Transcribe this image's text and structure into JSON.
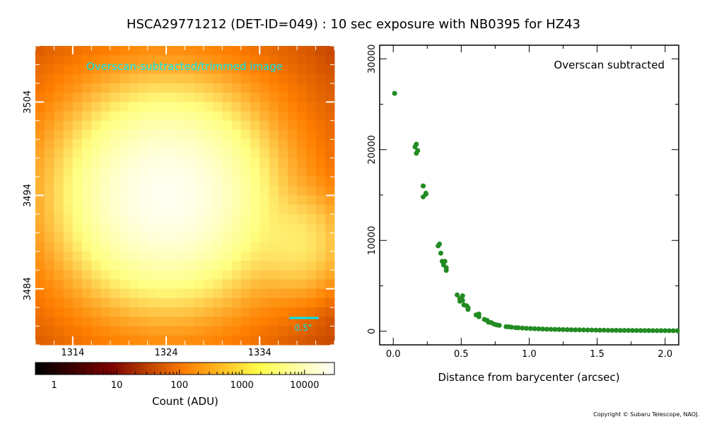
{
  "title": "HSCA29771212 (DET-ID=049) :  10 sec exposure with NB0395 for HZ43",
  "copyright": "Copyright © Subaru Telescope, NAOJ.",
  "colors": {
    "image_cmap": "afmhot",
    "scatter_point": "#228b22",
    "overlay_text": "#00e5ee"
  },
  "chart_data": [
    {
      "type": "heatmap",
      "overlay_label": "Overscan-subtracted/trimmed image",
      "scale_bar_label": "0.5\"",
      "x_ticks": [
        1314,
        1324,
        1334
      ],
      "y_ticks": [
        3504,
        3494,
        3484
      ],
      "xlim": [
        1310,
        1342
      ],
      "ylim": [
        3478,
        3510
      ],
      "features": [
        {
          "kind": "source",
          "x": 1324,
          "y": 3494,
          "peak_adu": 22000
        },
        {
          "kind": "source",
          "x": 1338,
          "y": 3489,
          "peak_adu": 1200
        }
      ],
      "colorbar": {
        "label": "Count (ADU)",
        "scale": "log",
        "range": [
          0.5,
          30000
        ],
        "tick_labels": [
          "1",
          "10",
          "100",
          "1000",
          "10000"
        ],
        "tick_values": [
          1,
          10,
          100,
          1000,
          10000
        ]
      }
    },
    {
      "type": "scatter",
      "label": "Overscan subtracted",
      "xlabel": "Distance from barycenter (arcsec)",
      "ylabel": "",
      "xlim": [
        -0.1,
        2.1
      ],
      "ylim": [
        -1500,
        31500
      ],
      "x_ticks": [
        "0.0",
        "0.5",
        "1.0",
        "1.5",
        "2.0"
      ],
      "x_tick_values": [
        0,
        0.5,
        1.0,
        1.5,
        2.0
      ],
      "y_ticks": [
        "0",
        "10000",
        "20000",
        "30000"
      ],
      "y_tick_values": [
        0,
        10000,
        20000,
        30000
      ],
      "points": [
        [
          0.01,
          26200
        ],
        [
          0.16,
          20300
        ],
        [
          0.17,
          20600
        ],
        [
          0.17,
          19600
        ],
        [
          0.18,
          19900
        ],
        [
          0.22,
          16000
        ],
        [
          0.22,
          14800
        ],
        [
          0.24,
          15200
        ],
        [
          0.24,
          15100
        ],
        [
          0.33,
          9400
        ],
        [
          0.34,
          9600
        ],
        [
          0.35,
          8600
        ],
        [
          0.36,
          7700
        ],
        [
          0.37,
          7300
        ],
        [
          0.38,
          7700
        ],
        [
          0.39,
          7000
        ],
        [
          0.39,
          6700
        ],
        [
          0.47,
          4000
        ],
        [
          0.49,
          3600
        ],
        [
          0.49,
          3300
        ],
        [
          0.51,
          3900
        ],
        [
          0.51,
          3400
        ],
        [
          0.52,
          2900
        ],
        [
          0.54,
          2800
        ],
        [
          0.55,
          2600
        ],
        [
          0.55,
          2400
        ],
        [
          0.61,
          1800
        ],
        [
          0.63,
          1600
        ],
        [
          0.63,
          1900
        ],
        [
          0.67,
          1300
        ],
        [
          0.69,
          1200
        ],
        [
          0.7,
          1000
        ],
        [
          0.72,
          950
        ],
        [
          0.74,
          800
        ],
        [
          0.76,
          700
        ],
        [
          0.78,
          650
        ],
        [
          0.83,
          500
        ],
        [
          0.85,
          480
        ],
        [
          0.87,
          450
        ],
        [
          0.9,
          400
        ],
        [
          0.92,
          380
        ],
        [
          0.95,
          350
        ],
        [
          0.98,
          320
        ],
        [
          1.01,
          300
        ],
        [
          1.04,
          280
        ],
        [
          1.07,
          260
        ],
        [
          1.1,
          240
        ],
        [
          1.13,
          220
        ],
        [
          1.16,
          210
        ],
        [
          1.19,
          200
        ],
        [
          1.22,
          190
        ],
        [
          1.25,
          180
        ],
        [
          1.28,
          170
        ],
        [
          1.31,
          160
        ],
        [
          1.34,
          150
        ],
        [
          1.37,
          150
        ],
        [
          1.4,
          140
        ],
        [
          1.43,
          130
        ],
        [
          1.46,
          130
        ],
        [
          1.49,
          120
        ],
        [
          1.52,
          110
        ],
        [
          1.55,
          110
        ],
        [
          1.58,
          100
        ],
        [
          1.61,
          100
        ],
        [
          1.64,
          100
        ],
        [
          1.67,
          90
        ],
        [
          1.7,
          90
        ],
        [
          1.73,
          90
        ],
        [
          1.76,
          85
        ],
        [
          1.79,
          80
        ],
        [
          1.82,
          80
        ],
        [
          1.85,
          75
        ],
        [
          1.88,
          75
        ],
        [
          1.91,
          70
        ],
        [
          1.94,
          70
        ],
        [
          1.97,
          65
        ],
        [
          2.0,
          65
        ],
        [
          2.03,
          60
        ],
        [
          2.06,
          60
        ],
        [
          2.09,
          55
        ]
      ]
    }
  ]
}
